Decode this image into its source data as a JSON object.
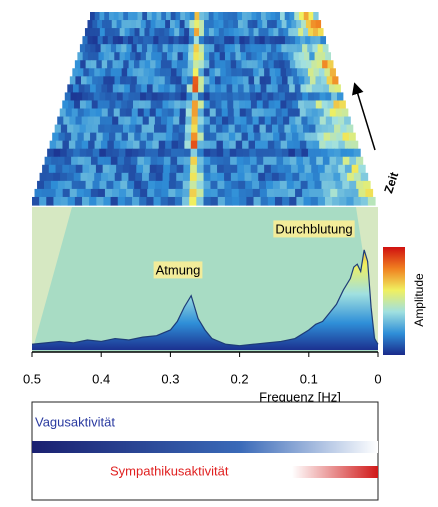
{
  "chart_data": {
    "type": "line",
    "x_label": "Frequenz [Hz]",
    "colorbar_label": "Amplitude",
    "time_label": "Zeit",
    "annotations": [
      "Durchblutung",
      "Atmung"
    ],
    "x": [
      0.5,
      0.48,
      0.46,
      0.44,
      0.42,
      0.4,
      0.38,
      0.36,
      0.34,
      0.32,
      0.3,
      0.29,
      0.28,
      0.27,
      0.26,
      0.25,
      0.24,
      0.22,
      0.2,
      0.18,
      0.16,
      0.14,
      0.12,
      0.1,
      0.09,
      0.08,
      0.07,
      0.06,
      0.05,
      0.04,
      0.035,
      0.03,
      0.025,
      0.02,
      0.015,
      0.01,
      0.005,
      0
    ],
    "series": [
      {
        "color": "#1e3c78",
        "values": [
          0.04,
          0.05,
          0.06,
          0.05,
          0.07,
          0.06,
          0.08,
          0.07,
          0.09,
          0.1,
          0.14,
          0.2,
          0.3,
          0.38,
          0.22,
          0.14,
          0.08,
          0.04,
          0.03,
          0.04,
          0.05,
          0.06,
          0.08,
          0.14,
          0.18,
          0.2,
          0.26,
          0.32,
          0.42,
          0.5,
          0.58,
          0.6,
          0.55,
          0.7,
          0.62,
          0.3,
          0.08,
          0.04
        ]
      }
    ],
    "xlim": [
      0.5,
      0
    ],
    "ylim": [
      0,
      1
    ],
    "xticks": [
      0.5,
      0.4,
      0.3,
      0.2,
      0.1,
      0
    ],
    "colorscale": [
      "#1a2a8a",
      "#2f8fd8",
      "#a0e0e0",
      "#f0f060",
      "#f08020",
      "#d01010"
    ]
  },
  "activity": {
    "vagal": "Vagusaktivität",
    "sympathetic": "Sympathikusaktivität"
  }
}
